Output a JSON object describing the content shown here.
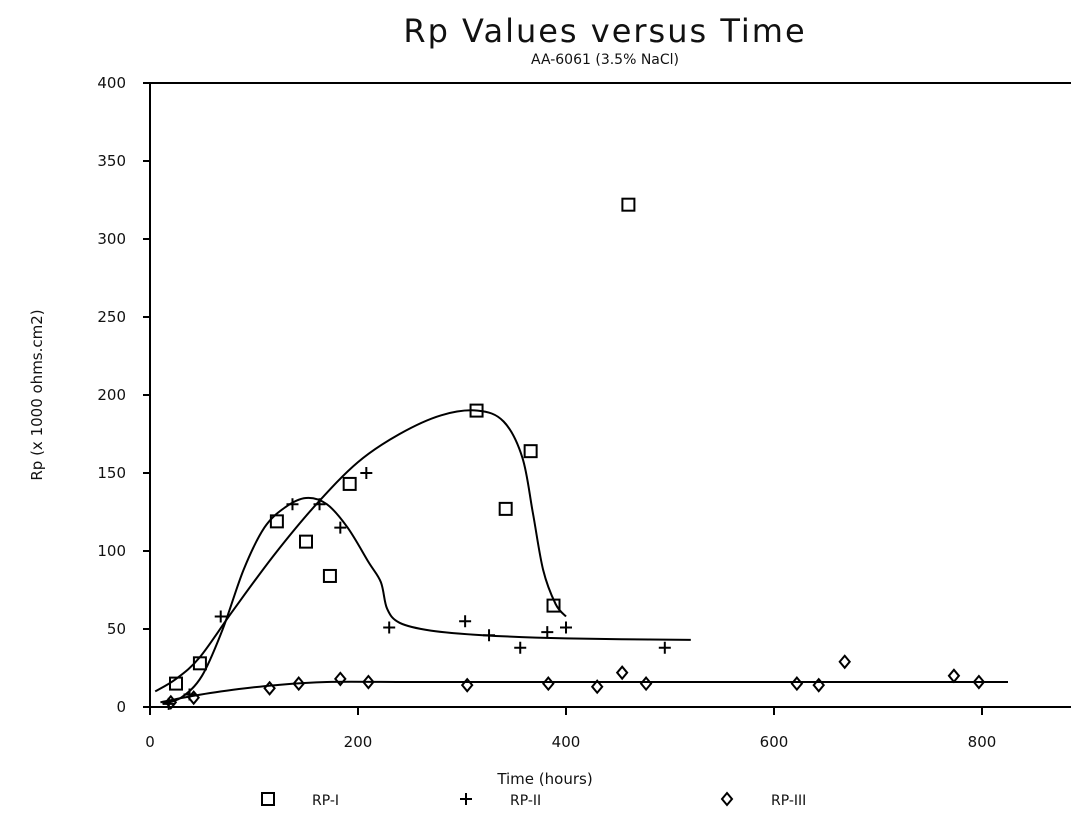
{
  "chart_data": {
    "type": "scatter",
    "title": "Rp Values versus Time",
    "subtitle": "AA-6061 (3.5% NaCl)",
    "xlabel": "Time (hours)",
    "ylabel": "Rp (x 1000 ohms.cm2)",
    "xlim": [
      0,
      900
    ],
    "ylim": [
      0,
      400
    ],
    "xticks": [
      0,
      200,
      400,
      600,
      800
    ],
    "yticks": [
      0,
      50,
      100,
      150,
      200,
      250,
      300,
      350,
      400
    ],
    "grid": false,
    "legend_position": "bottom",
    "series": [
      {
        "name": "RP-I",
        "marker": "square",
        "points": [
          [
            25,
            15
          ],
          [
            48,
            28
          ],
          [
            122,
            119
          ],
          [
            150,
            106
          ],
          [
            173,
            84
          ],
          [
            192,
            143
          ],
          [
            314,
            190
          ],
          [
            342,
            127
          ],
          [
            366,
            164
          ],
          [
            388,
            65
          ],
          [
            460,
            322
          ]
        ],
        "fit": [
          [
            5,
            10
          ],
          [
            25,
            18
          ],
          [
            48,
            32
          ],
          [
            80,
            62
          ],
          [
            120,
            98
          ],
          [
            160,
            130
          ],
          [
            200,
            157
          ],
          [
            240,
            175
          ],
          [
            280,
            187
          ],
          [
            315,
            190
          ],
          [
            340,
            183
          ],
          [
            358,
            160
          ],
          [
            368,
            125
          ],
          [
            378,
            88
          ],
          [
            390,
            66
          ],
          [
            400,
            58
          ]
        ]
      },
      {
        "name": "RP-II",
        "marker": "plus",
        "points": [
          [
            18,
            2
          ],
          [
            38,
            8
          ],
          [
            68,
            58
          ],
          [
            137,
            130
          ],
          [
            163,
            130
          ],
          [
            183,
            115
          ],
          [
            208,
            150
          ],
          [
            230,
            51
          ],
          [
            303,
            55
          ],
          [
            326,
            46
          ],
          [
            356,
            38
          ],
          [
            382,
            48
          ],
          [
            400,
            51
          ],
          [
            495,
            38
          ]
        ],
        "fit": [
          [
            12,
            2
          ],
          [
            30,
            6
          ],
          [
            50,
            20
          ],
          [
            70,
            50
          ],
          [
            90,
            88
          ],
          [
            110,
            115
          ],
          [
            130,
            128
          ],
          [
            150,
            134
          ],
          [
            170,
            130
          ],
          [
            190,
            115
          ],
          [
            210,
            93
          ],
          [
            222,
            80
          ],
          [
            228,
            63
          ],
          [
            240,
            54
          ],
          [
            270,
            49
          ],
          [
            320,
            46
          ],
          [
            400,
            44
          ],
          [
            520,
            43
          ]
        ]
      },
      {
        "name": "RP-III",
        "marker": "diamond",
        "points": [
          [
            20,
            3
          ],
          [
            42,
            6
          ],
          [
            115,
            12
          ],
          [
            143,
            15
          ],
          [
            183,
            18
          ],
          [
            210,
            16
          ],
          [
            305,
            14
          ],
          [
            383,
            15
          ],
          [
            430,
            13
          ],
          [
            454,
            22
          ],
          [
            477,
            15
          ],
          [
            622,
            15
          ],
          [
            643,
            14
          ],
          [
            668,
            29
          ],
          [
            773,
            20
          ],
          [
            797,
            16
          ]
        ],
        "fit": [
          [
            10,
            3
          ],
          [
            40,
            7
          ],
          [
            80,
            11
          ],
          [
            120,
            14
          ],
          [
            170,
            16
          ],
          [
            250,
            16
          ],
          [
            400,
            16
          ],
          [
            600,
            16
          ],
          [
            825,
            16
          ]
        ]
      }
    ]
  }
}
